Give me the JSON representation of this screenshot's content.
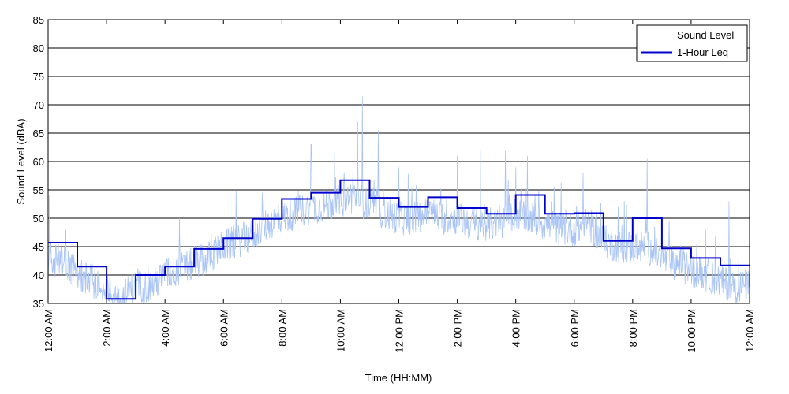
{
  "chart_data": {
    "type": "line",
    "title": "",
    "xlabel": "Time (HH:MM)",
    "ylabel": "Sound Level (dBA)",
    "xlim": [
      0,
      24
    ],
    "ylim": [
      35,
      85
    ],
    "grid": "horizontal",
    "legend_position": "top-right",
    "y_ticks": [
      35,
      40,
      45,
      50,
      55,
      60,
      65,
      70,
      75,
      80,
      85
    ],
    "x_ticks": [
      {
        "hour": 0,
        "label": "12:00 AM"
      },
      {
        "hour": 2,
        "label": "2:00 AM"
      },
      {
        "hour": 4,
        "label": "4:00 AM"
      },
      {
        "hour": 6,
        "label": "6:00 AM"
      },
      {
        "hour": 8,
        "label": "8:00 AM"
      },
      {
        "hour": 10,
        "label": "10:00 AM"
      },
      {
        "hour": 12,
        "label": "12:00 PM"
      },
      {
        "hour": 14,
        "label": "2:00 PM"
      },
      {
        "hour": 16,
        "label": "4:00 PM"
      },
      {
        "hour": 18,
        "label": "6:00 PM"
      },
      {
        "hour": 20,
        "label": "8:00 PM"
      },
      {
        "hour": 22,
        "label": "10:00 PM"
      },
      {
        "hour": 24,
        "label": "12:00 AM"
      }
    ],
    "series": [
      {
        "name": "Sound Level",
        "style": "thin-line",
        "color": "#a9c4f5",
        "hours": [
          0,
          0.5,
          1,
          1.5,
          2,
          2.5,
          3,
          3.5,
          4,
          4.5,
          5,
          5.5,
          6,
          6.5,
          7,
          7.5,
          8,
          8.5,
          9,
          9.5,
          10,
          10.5,
          11,
          11.5,
          12,
          12.5,
          13,
          13.5,
          14,
          14.5,
          15,
          15.5,
          16,
          16.5,
          17,
          17.5,
          18,
          18.5,
          19,
          19.5,
          20,
          20.5,
          21,
          21.5,
          22,
          22.5,
          23,
          23.5
        ],
        "baseline": [
          42,
          43,
          40,
          39,
          37,
          36,
          38,
          38,
          40,
          41,
          42,
          43,
          45,
          46,
          47,
          49,
          50,
          51,
          52,
          52,
          53,
          54,
          52,
          51,
          50,
          50,
          51,
          50,
          50,
          49,
          49,
          49,
          51,
          50,
          49,
          48,
          48,
          49,
          46,
          45,
          45,
          45,
          43,
          42,
          41,
          40,
          39,
          38
        ],
        "peaks": [
          {
            "hour": 0.05,
            "value": 54
          },
          {
            "hour": 1.08,
            "value": 50
          },
          {
            "hour": 3.4,
            "value": 49
          },
          {
            "hour": 4.5,
            "value": 50
          },
          {
            "hour": 9.0,
            "value": 63
          },
          {
            "hour": 9.8,
            "value": 62
          },
          {
            "hour": 10.6,
            "value": 67
          },
          {
            "hour": 10.75,
            "value": 71.5
          },
          {
            "hour": 11.3,
            "value": 65.5
          },
          {
            "hour": 12.0,
            "value": 59
          },
          {
            "hour": 14.0,
            "value": 61
          },
          {
            "hour": 14.8,
            "value": 62
          },
          {
            "hour": 15.65,
            "value": 62
          },
          {
            "hour": 16.0,
            "value": 59
          },
          {
            "hour": 16.4,
            "value": 61
          },
          {
            "hour": 18.3,
            "value": 58
          },
          {
            "hour": 19.5,
            "value": 52
          },
          {
            "hour": 20.5,
            "value": 60.5
          },
          {
            "hour": 22.5,
            "value": 48
          },
          {
            "hour": 23.3,
            "value": 53
          }
        ]
      },
      {
        "name": "1-Hour Leq",
        "style": "step",
        "color": "#0000cc",
        "hours": [
          0,
          1,
          2,
          3,
          4,
          5,
          6,
          7,
          8,
          9,
          10,
          11,
          12,
          13,
          14,
          15,
          16,
          17,
          18,
          19,
          20,
          21,
          22,
          23
        ],
        "values": [
          45.7,
          41.5,
          35.8,
          40.0,
          41.5,
          44.6,
          46.5,
          49.9,
          53.4,
          54.5,
          56.7,
          53.6,
          52.0,
          53.7,
          51.8,
          50.8,
          54.1,
          50.8,
          50.9,
          46.0,
          50.0,
          44.7,
          43.0,
          41.7
        ]
      }
    ]
  }
}
